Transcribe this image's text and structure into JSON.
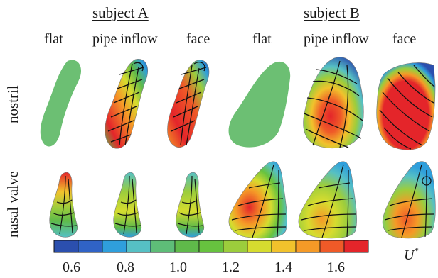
{
  "subjects": [
    {
      "label": "subject A"
    },
    {
      "label": "subject B"
    }
  ],
  "columns": [
    {
      "label": "flat"
    },
    {
      "label": "pipe inflow"
    },
    {
      "label": "face"
    },
    {
      "label": "flat"
    },
    {
      "label": "pipe inflow"
    },
    {
      "label": "face"
    }
  ],
  "rows": [
    {
      "label": "nostril"
    },
    {
      "label": "nasal valve"
    }
  ],
  "colorbar": {
    "label_main": "U",
    "label_sup": "*",
    "ticks": [
      "0.6",
      "0.8",
      "1.0",
      "1.2",
      "1.4",
      "1.6"
    ],
    "min": 0.5,
    "max": 1.7,
    "colors": [
      "#2b4fae",
      "#3063c6",
      "#2f9fdc",
      "#56c0c4",
      "#5ebd78",
      "#5fba4a",
      "#67c23f",
      "#9ccd3c",
      "#d6dc2f",
      "#f1c22c",
      "#f59a27",
      "#ef5a28",
      "#e4252a"
    ]
  },
  "colors": {
    "flat_green": "#6cbf73",
    "outline": "#7a7a7a",
    "streamline": "#111111"
  }
}
